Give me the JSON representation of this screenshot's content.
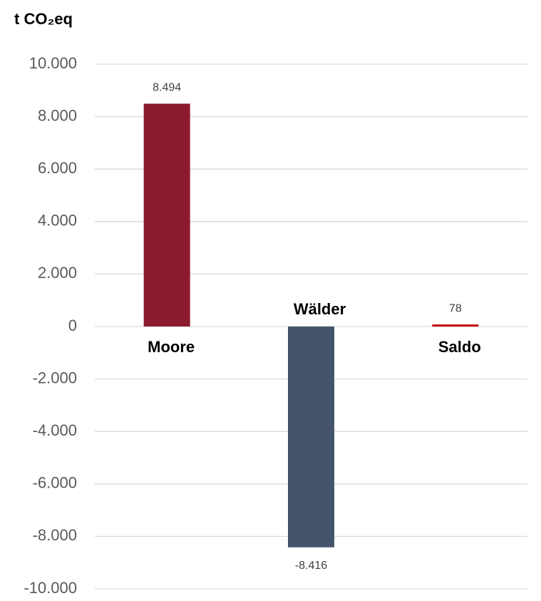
{
  "chart_data": {
    "type": "bar",
    "title": "t CO₂eq",
    "categories": [
      "Moore",
      "Wälder",
      "Saldo"
    ],
    "values": [
      8494,
      -8416,
      78
    ],
    "value_labels": [
      "8.494",
      "-8.416",
      "78"
    ],
    "colors": [
      "#8b1a2e",
      "#44546a",
      "#c00000"
    ],
    "ylim": [
      -10000,
      10000
    ],
    "yticks": [
      {
        "value": -10000,
        "label": "-10.000"
      },
      {
        "value": -8000,
        "label": "-8.000"
      },
      {
        "value": -6000,
        "label": "-6.000"
      },
      {
        "value": -4000,
        "label": "-4.000"
      },
      {
        "value": -2000,
        "label": "-2.000"
      },
      0,
      {
        "value": 2000,
        "label": "2.000"
      },
      {
        "value": 4000,
        "label": "4.000"
      },
      {
        "value": 6000,
        "label": "6.000"
      },
      {
        "value": 8000,
        "label": "8.000"
      },
      {
        "value": 10000,
        "label": "10.000"
      }
    ],
    "grid": true
  }
}
